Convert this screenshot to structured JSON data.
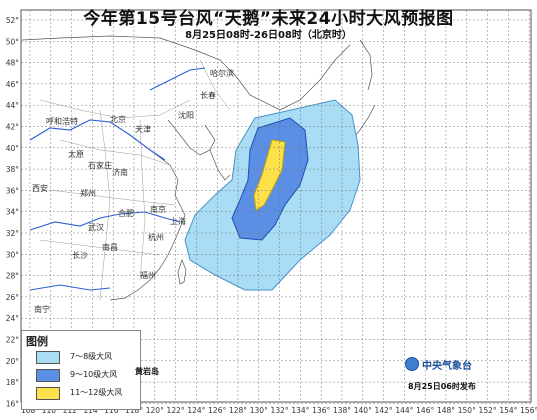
{
  "title": "今年第15号台风“天鹅”未来24小时大风预报图",
  "subtitle": "8月25日08时-26日08时（北京时）",
  "lon_ticks": [
    "108°",
    "110°",
    "112°",
    "114°",
    "116°",
    "118°",
    "120°",
    "122°",
    "124°",
    "126°",
    "128°",
    "130°",
    "132°",
    "134°",
    "136°",
    "138°",
    "140°",
    "142°",
    "144°",
    "146°",
    "148°",
    "150°",
    "152°",
    "154°",
    "156°"
  ],
  "lat_ticks": [
    "52°",
    "50°",
    "48°",
    "46°",
    "44°",
    "42°",
    "40°",
    "38°",
    "36°",
    "34°",
    "32°",
    "30°",
    "28°",
    "26°",
    "24°",
    "22°",
    "20°",
    "18°",
    "16°"
  ],
  "cities": [
    "哈尔滨",
    "长春",
    "沈阳",
    "呼和浩特",
    "北京",
    "天津",
    "太原",
    "石家庄",
    "济南",
    "西安",
    "郑州",
    "合肥",
    "南京",
    "上海",
    "武汉",
    "杭州",
    "长沙",
    "南昌",
    "福州",
    "南宁"
  ],
  "legend": {
    "title": "图例",
    "items": [
      {
        "label": "7～8级大风",
        "color": "#a8ddf5"
      },
      {
        "label": "9～10级大风",
        "color": "#5b8fe6"
      },
      {
        "label": "11～12级大风",
        "color": "#fde14a"
      }
    ]
  },
  "island_label": "黄岩岛",
  "agency": "中央气象台",
  "issued": "8月25日06时发布",
  "colors": {
    "land": "#ffffff",
    "sea": "#ffffff",
    "border": "#888888",
    "river": "#2b5fd6",
    "grid": "#777777"
  }
}
